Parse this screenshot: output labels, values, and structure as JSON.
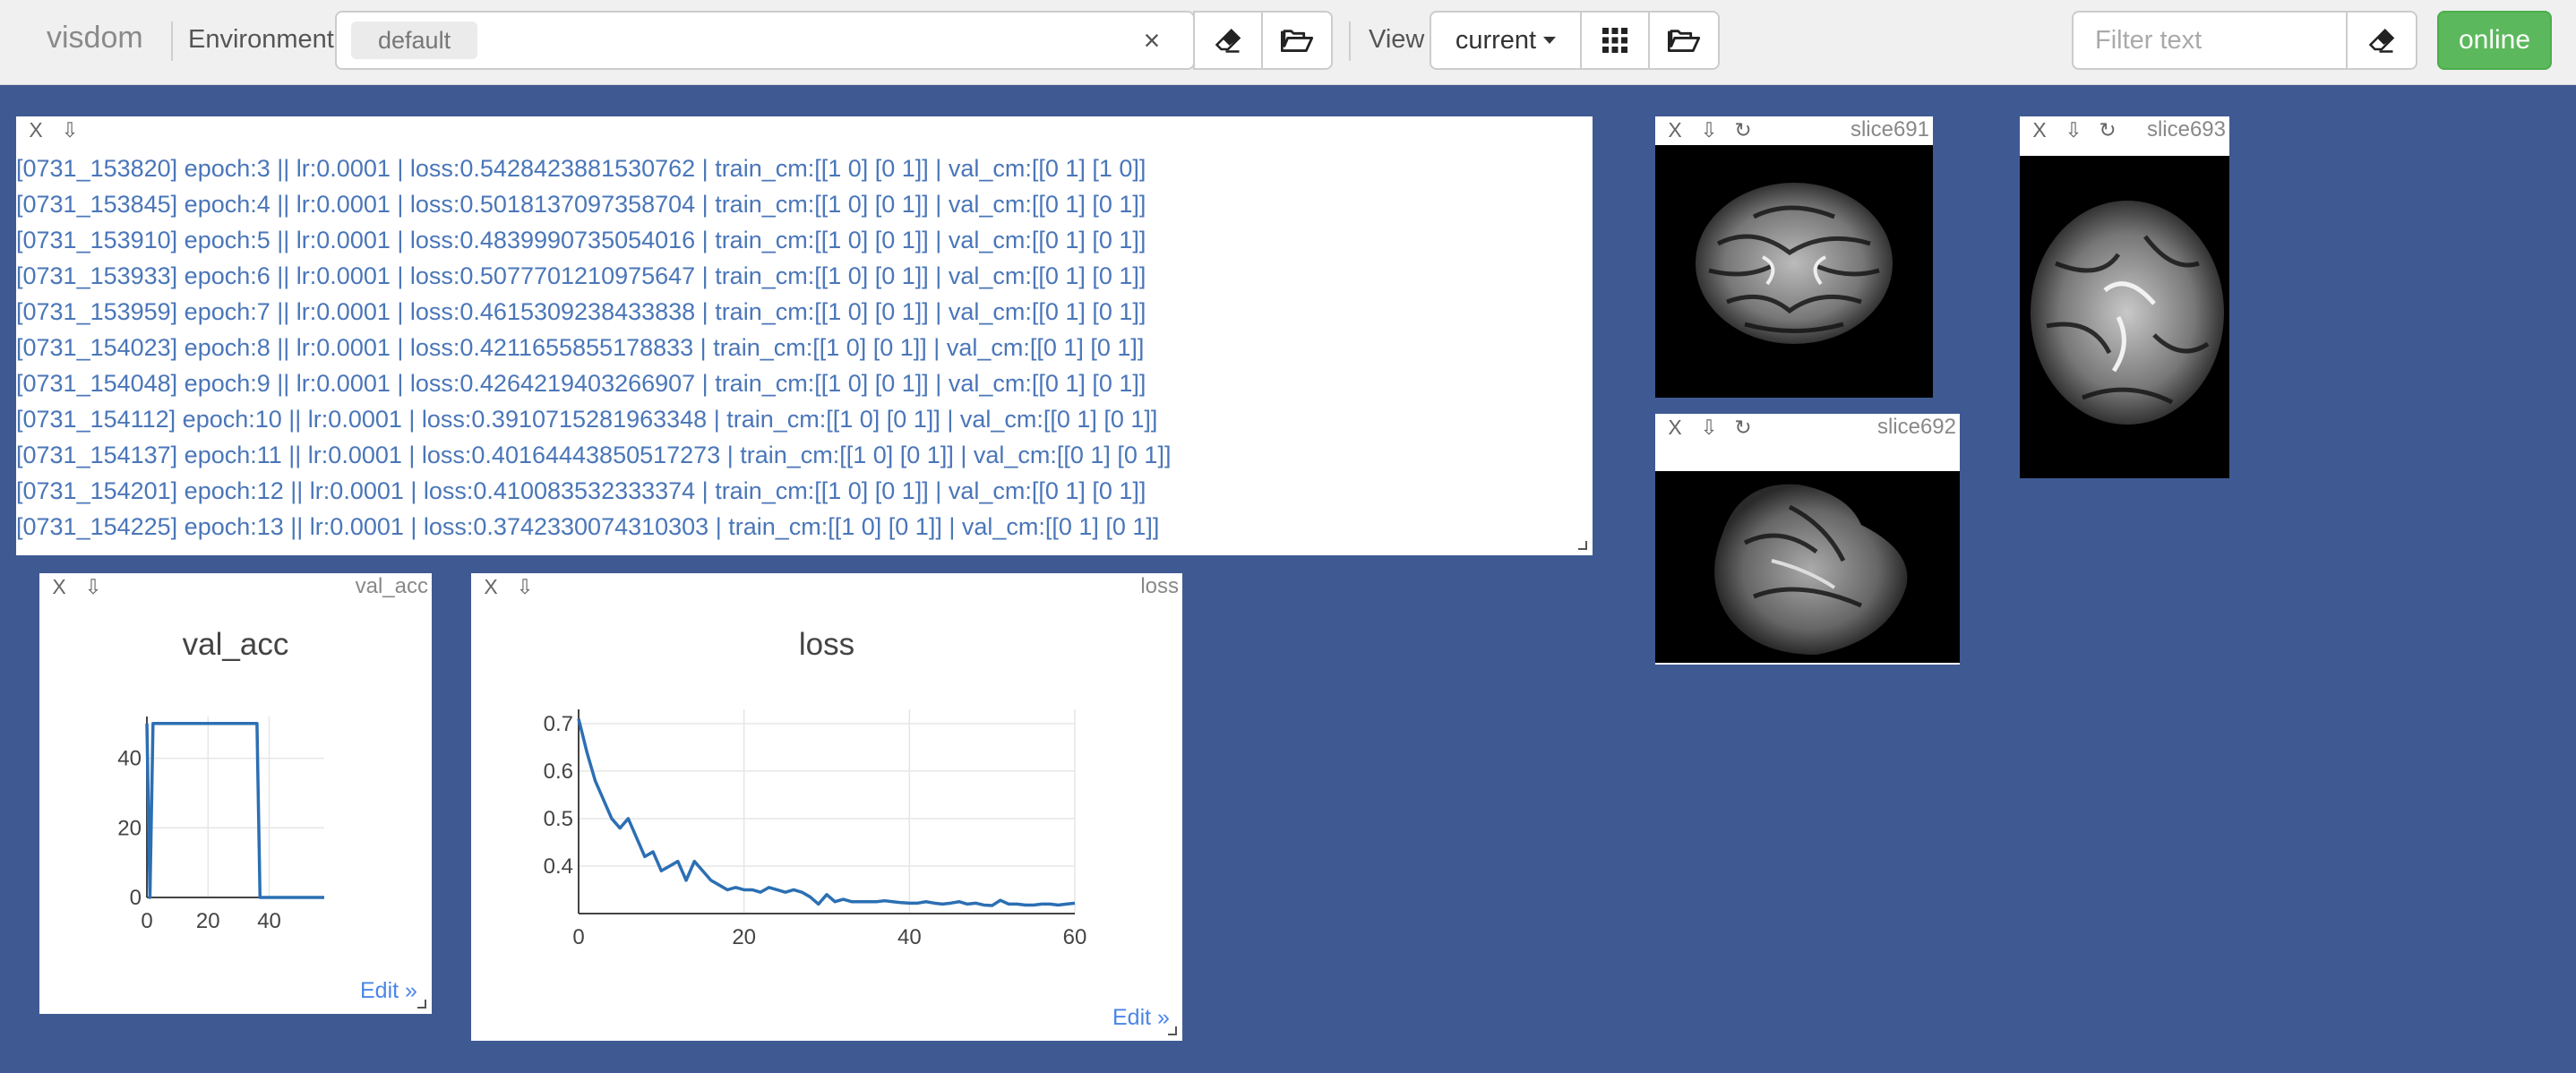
{
  "navbar": {
    "brand": "visdom",
    "environment_label": "Environment",
    "environment_tag": "default",
    "clear_symbol": "×",
    "view_label": "View",
    "view_select": "current",
    "filter_placeholder": "Filter text",
    "status": "online",
    "status_color": "#5cb85c"
  },
  "text_pane": {
    "lines": [
      "[0731_153820] epoch:3 || lr:0.0001 | loss:0.5428423881530762 | train_cm:[[1 0] [0 1]] | val_cm:[[0 1] [1 0]]",
      "[0731_153845] epoch:4 || lr:0.0001 | loss:0.5018137097358704 | train_cm:[[1 0] [0 1]] | val_cm:[[0 1] [0 1]]",
      "[0731_153910] epoch:5 || lr:0.0001 | loss:0.4839990735054016 | train_cm:[[1 0] [0 1]] | val_cm:[[0 1] [0 1]]",
      "[0731_153933] epoch:6 || lr:0.0001 | loss:0.5077701210975647 | train_cm:[[1 0] [0 1]] | val_cm:[[0 1] [0 1]]",
      "[0731_153959] epoch:7 || lr:0.0001 | loss:0.4615309238433838 | train_cm:[[1 0] [0 1]] | val_cm:[[0 1] [0 1]]",
      "[0731_154023] epoch:8 || lr:0.0001 | loss:0.4211655855178833 | train_cm:[[1 0] [0 1]] | val_cm:[[0 1] [0 1]]",
      "[0731_154048] epoch:9 || lr:0.0001 | loss:0.4264219403266907 | train_cm:[[1 0] [0 1]] | val_cm:[[0 1] [0 1]]",
      "[0731_154112] epoch:10 || lr:0.0001 | loss:0.3910715281963348 | train_cm:[[1 0] [0 1]] | val_cm:[[0 1] [0 1]]",
      "[0731_154137] epoch:11 || lr:0.0001 | loss:0.40164443850517273 | train_cm:[[1 0] [0 1]] | val_cm:[[0 1] [0 1]]",
      "[0731_154201] epoch:12 || lr:0.0001 | loss:0.410083532333374 | train_cm:[[1 0] [0 1]] | val_cm:[[0 1] [0 1]]",
      "[0731_154225] epoch:13 || lr:0.0001 | loss:0.3742330074310303 | train_cm:[[1 0] [0 1]] | val_cm:[[0 1] [0 1]]"
    ]
  },
  "image_panes": [
    {
      "title": "slice691"
    },
    {
      "title": "slice692"
    },
    {
      "title": "slice693"
    }
  ],
  "pane_controls": {
    "close": "X",
    "download_icon": "download-icon",
    "reset_icon": "reset-icon"
  },
  "plot_line_color": "#2c6fb3",
  "chart_data": [
    {
      "type": "line",
      "pane_title": "val_acc",
      "title": "val_acc",
      "x": [
        0,
        1,
        2,
        36,
        37,
        58
      ],
      "y": [
        50,
        0,
        50,
        50,
        0,
        0
      ],
      "xticks": [
        0,
        20,
        40
      ],
      "yticks": [
        0,
        20,
        40
      ],
      "xlim": [
        0,
        58
      ],
      "ylim": [
        0,
        52
      ],
      "grid": true,
      "edit_label": "Edit »"
    },
    {
      "type": "line",
      "pane_title": "loss",
      "title": "loss",
      "x": [
        0,
        1,
        2,
        3,
        4,
        5,
        6,
        7,
        8,
        9,
        10,
        11,
        12,
        13,
        14,
        15,
        16,
        17,
        18,
        19,
        20,
        21,
        22,
        23,
        24,
        25,
        26,
        27,
        28,
        29,
        30,
        31,
        32,
        33,
        34,
        35,
        36,
        37,
        38,
        39,
        40,
        41,
        42,
        43,
        44,
        45,
        46,
        47,
        48,
        49,
        50,
        51,
        52,
        53,
        54,
        55,
        56,
        57,
        58,
        59,
        60
      ],
      "y": [
        0.71,
        0.64,
        0.58,
        0.54,
        0.5,
        0.48,
        0.5,
        0.46,
        0.42,
        0.43,
        0.39,
        0.4,
        0.41,
        0.37,
        0.41,
        0.39,
        0.37,
        0.36,
        0.35,
        0.355,
        0.35,
        0.35,
        0.345,
        0.355,
        0.35,
        0.345,
        0.35,
        0.345,
        0.335,
        0.32,
        0.34,
        0.325,
        0.33,
        0.325,
        0.325,
        0.325,
        0.325,
        0.327,
        0.325,
        0.323,
        0.322,
        0.322,
        0.325,
        0.322,
        0.32,
        0.322,
        0.325,
        0.32,
        0.322,
        0.318,
        0.317,
        0.328,
        0.32,
        0.32,
        0.318,
        0.318,
        0.32,
        0.32,
        0.318,
        0.32,
        0.322
      ],
      "xticks": [
        0,
        20,
        40,
        60
      ],
      "yticks": [
        0.4,
        0.5,
        0.6,
        0.7
      ],
      "xlim": [
        0,
        60
      ],
      "ylim": [
        0.3,
        0.73
      ],
      "grid": true,
      "edit_label": "Edit »"
    }
  ]
}
